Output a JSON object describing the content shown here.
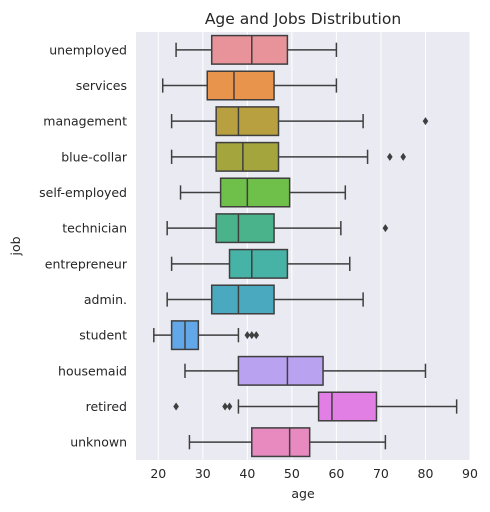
{
  "chart_data": {
    "type": "boxplot",
    "title": "Age and Jobs Distribution",
    "xlabel": "age",
    "ylabel": "job",
    "xlim": [
      15,
      90
    ],
    "xticks": [
      20,
      30,
      40,
      50,
      60,
      70,
      80,
      90
    ],
    "grid": true,
    "legend": "none",
    "categories": [
      "unemployed",
      "services",
      "management",
      "blue-collar",
      "self-employed",
      "technician",
      "entrepreneur",
      "admin.",
      "student",
      "housemaid",
      "retired",
      "unknown"
    ],
    "colors": [
      "#e8939a",
      "#e8944c",
      "#b8a040",
      "#a4a53c",
      "#6ec04a",
      "#4ab38b",
      "#47b3a6",
      "#4aa8bf",
      "#62a8e8",
      "#b9a3f0",
      "#e27fe4",
      "#e88ac0"
    ],
    "series": [
      {
        "name": "unemployed",
        "whisker_low": 24,
        "q1": 32,
        "median": 41,
        "q3": 49,
        "whisker_high": 60,
        "outliers": []
      },
      {
        "name": "services",
        "whisker_low": 21,
        "q1": 31,
        "median": 37,
        "q3": 46,
        "whisker_high": 60,
        "outliers": []
      },
      {
        "name": "management",
        "whisker_low": 23,
        "q1": 33,
        "median": 38,
        "q3": 47,
        "whisker_high": 66,
        "outliers": [
          80
        ]
      },
      {
        "name": "blue-collar",
        "whisker_low": 23,
        "q1": 33,
        "median": 39,
        "q3": 47,
        "whisker_high": 67,
        "outliers": [
          72,
          75
        ]
      },
      {
        "name": "self-employed",
        "whisker_low": 25,
        "q1": 34,
        "median": 40,
        "q3": 49.5,
        "whisker_high": 62,
        "outliers": []
      },
      {
        "name": "technician",
        "whisker_low": 22,
        "q1": 33,
        "median": 38,
        "q3": 46,
        "whisker_high": 61,
        "outliers": [
          71
        ]
      },
      {
        "name": "entrepreneur",
        "whisker_low": 23,
        "q1": 36,
        "median": 41,
        "q3": 49,
        "whisker_high": 63,
        "outliers": []
      },
      {
        "name": "admin.",
        "whisker_low": 22,
        "q1": 32,
        "median": 38,
        "q3": 46,
        "whisker_high": 66,
        "outliers": []
      },
      {
        "name": "student",
        "whisker_low": 19,
        "q1": 23,
        "median": 26,
        "q3": 29,
        "whisker_high": 38,
        "outliers": [
          40,
          41,
          42
        ]
      },
      {
        "name": "housemaid",
        "whisker_low": 26,
        "q1": 38,
        "median": 49,
        "q3": 57,
        "whisker_high": 80,
        "outliers": []
      },
      {
        "name": "retired",
        "whisker_low": 38,
        "q1": 56,
        "median": 59,
        "q3": 69,
        "whisker_high": 87,
        "outliers": [
          24,
          35,
          36
        ]
      },
      {
        "name": "unknown",
        "whisker_low": 27,
        "q1": 41,
        "median": 49.5,
        "q3": 54,
        "whisker_high": 71,
        "outliers": []
      }
    ]
  }
}
